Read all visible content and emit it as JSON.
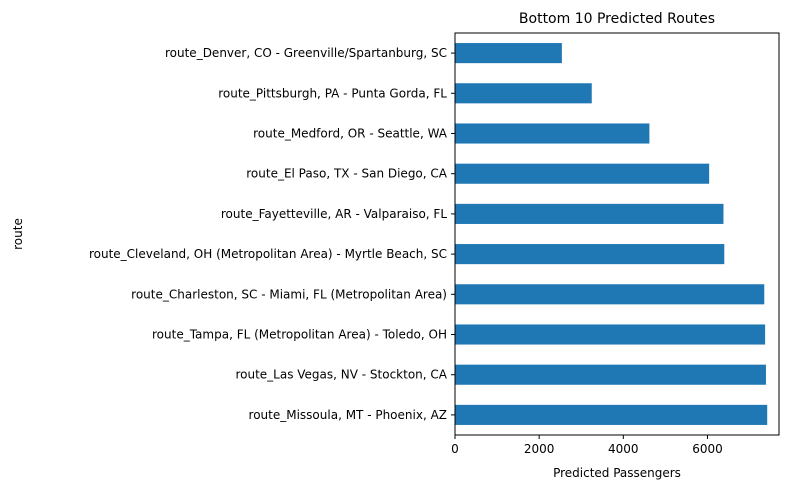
{
  "chart_data": {
    "type": "bar",
    "orientation": "horizontal",
    "title": "Bottom 10 Predicted Routes",
    "xlabel": "Predicted Passengers",
    "ylabel": "route",
    "xlim": [
      0,
      7700
    ],
    "xticks": [
      0,
      2000,
      4000,
      6000
    ],
    "grid": false,
    "legend": "none",
    "bar_color": "#1f77b4",
    "categories": [
      "route_Denver, CO - Greenville/Spartanburg, SC",
      "route_Pittsburgh, PA - Punta Gorda, FL",
      "route_Medford, OR - Seattle, WA",
      "route_El Paso, TX - San Diego, CA",
      "route_Fayetteville, AR - Valparaiso, FL",
      "route_Cleveland, OH (Metropolitan Area) - Myrtle Beach, SC",
      "route_Charleston, SC - Miami, FL (Metropolitan Area)",
      "route_Tampa, FL (Metropolitan Area) - Toledo, OH",
      "route_Las Vegas, NV - Stockton, CA",
      "route_Missoula, MT - Phoenix, AZ"
    ],
    "values": [
      2540,
      3250,
      4620,
      6040,
      6380,
      6400,
      7350,
      7370,
      7390,
      7420
    ]
  }
}
